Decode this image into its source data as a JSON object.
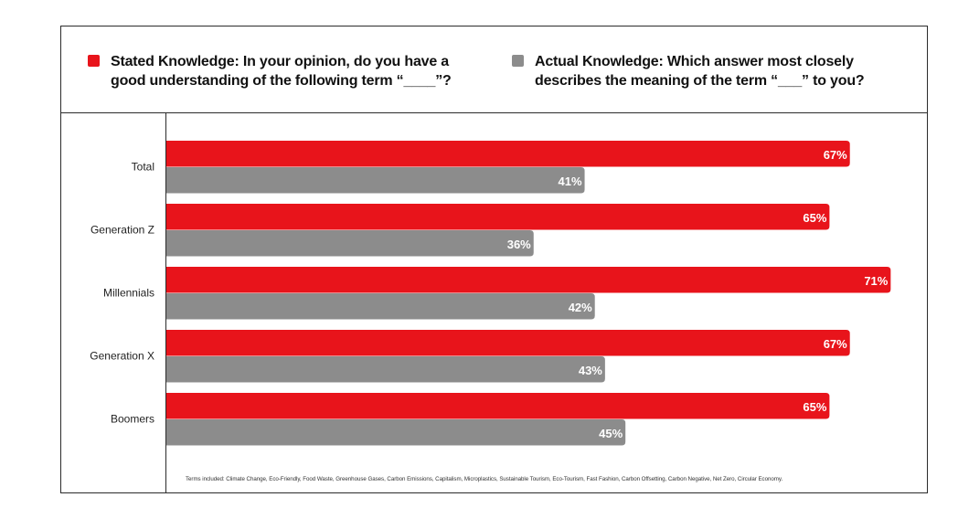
{
  "legend": {
    "stated": {
      "label_line1": "Stated Knowledge: In your opinion, do you have a",
      "label_line2": "good understanding of the following term “____”?",
      "color": "#e8141b"
    },
    "actual": {
      "label_line1": "Actual Knowledge: Which answer most closely",
      "label_line2": "describes the meaning of the term “___” to you?",
      "color": "#8c8c8c"
    }
  },
  "chart_data": {
    "type": "bar",
    "orientation": "horizontal",
    "categories": [
      "Total",
      "Generation Z",
      "Millennials",
      "Generation X",
      "Boomers"
    ],
    "series": [
      {
        "name": "Stated Knowledge: In your opinion, do you have a good understanding of the following term “____”?",
        "color": "#e8141b",
        "values": [
          67,
          65,
          71,
          67,
          65
        ]
      },
      {
        "name": "Actual Knowledge: Which answer most closely describes the meaning of the term “___” to you?",
        "color": "#8c8c8c",
        "values": [
          41,
          36,
          42,
          43,
          45
        ]
      }
    ],
    "value_suffix": "%",
    "xlim": [
      0,
      100
    ],
    "grid": false,
    "legend_position": "top",
    "title": "",
    "xlabel": "",
    "ylabel": ""
  },
  "footnote": "Terms included: Climate Change, Eco-Friendly, Food Waste, Greenhouse Gases, Carbon Emissions, Capitalism, Microplastics, Sustainable Tourism, Eco-Tourism, Fast Fashion, Carbon Offsetting, Carbon Negative, Net Zero, Circular Economy."
}
